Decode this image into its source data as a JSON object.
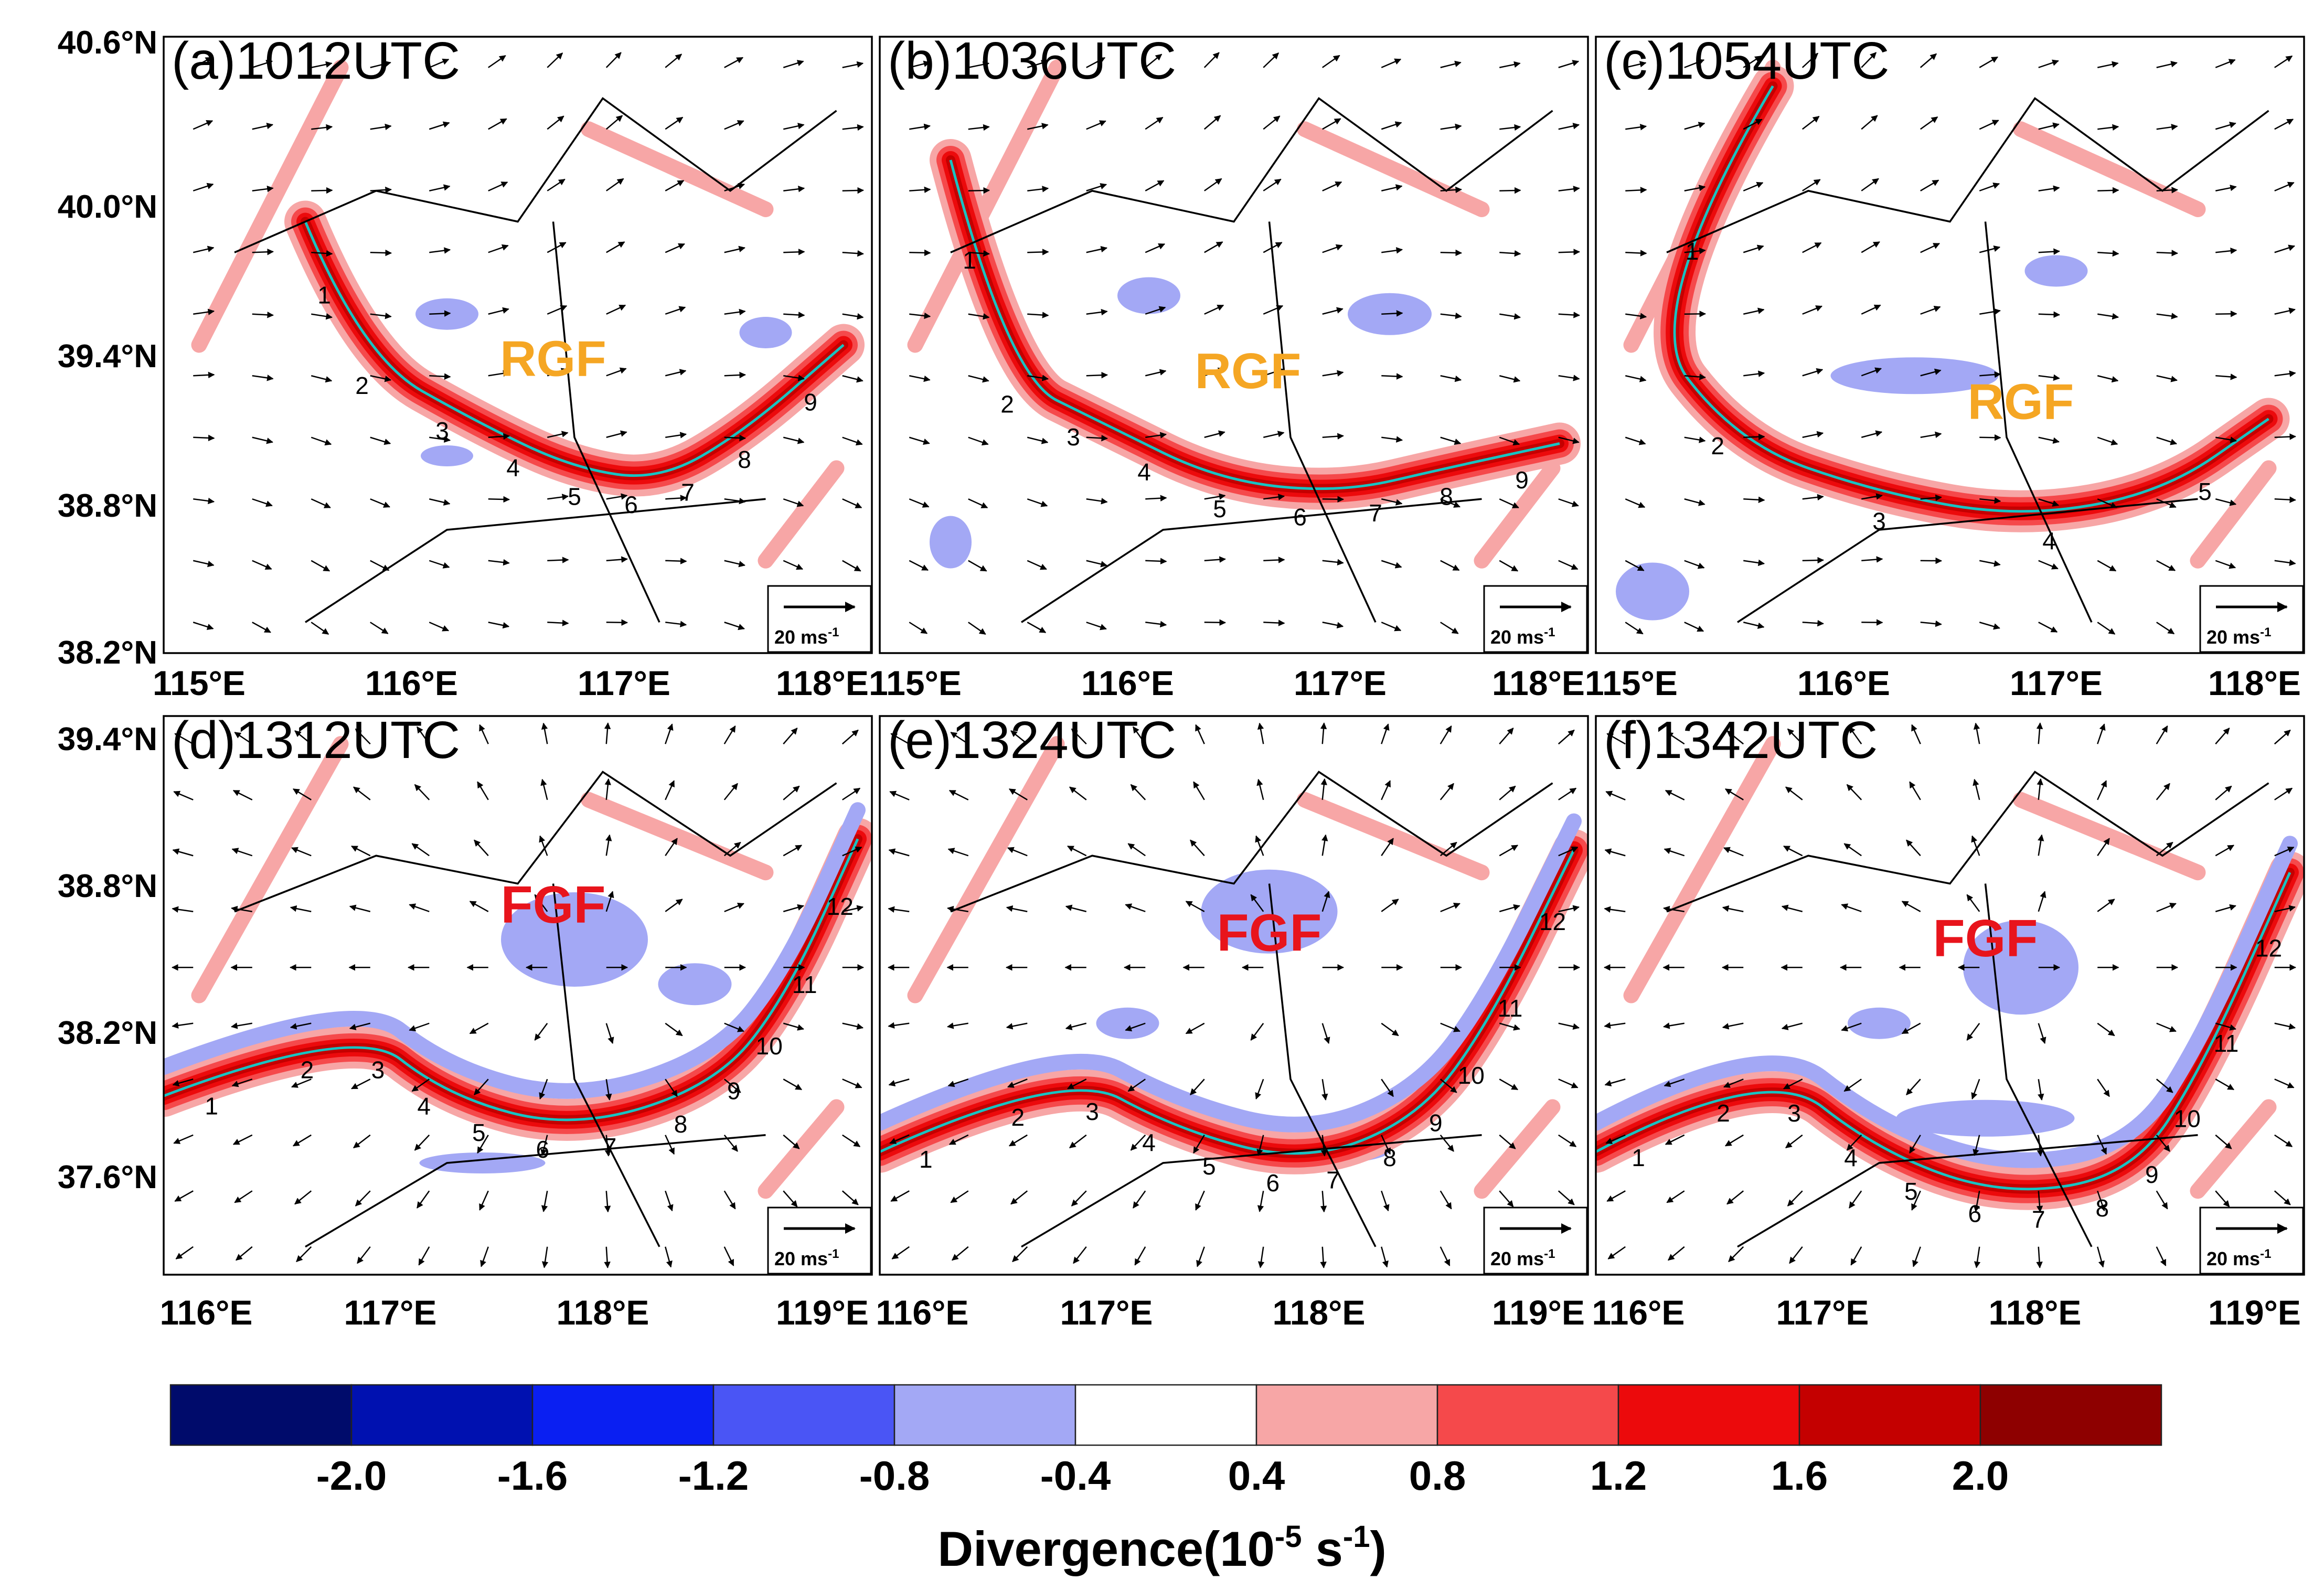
{
  "figure": {
    "colorbar": {
      "title_main": "Divergence(10",
      "title_exp1": "-5",
      "title_mid": " s",
      "title_exp2": "-1",
      "title_end": ")",
      "tick_labels": [
        "-2.0",
        "-1.6",
        "-1.2",
        "-0.8",
        "-0.4",
        "0.4",
        "0.8",
        "1.2",
        "1.6",
        "2.0"
      ],
      "colors": [
        "#000b6b",
        "#0011b0",
        "#0a1ff2",
        "#4a55f5",
        "#a3a8f5",
        "#ffffff",
        "#f7a6a6",
        "#f5494b",
        "#ec0a0c",
        "#c40000",
        "#8e0000"
      ]
    },
    "reference_vector": {
      "label": "20 ms",
      "exponent": "-1"
    },
    "row1": {
      "lat_labels": [
        "40.6°N",
        "40.0°N",
        "39.4°N",
        "38.8°N",
        "38.2°N"
      ],
      "lon_labels": [
        "115°E",
        "116°E",
        "117°E",
        "118°E"
      ]
    },
    "row2": {
      "lat_labels": [
        "39.4°N",
        "38.8°N",
        "38.2°N",
        "37.6°N"
      ],
      "lon_labels": [
        "116°E",
        "117°E",
        "118°E",
        "119°E"
      ]
    },
    "panels": [
      {
        "title": "(a)1012UTC",
        "front_label": "RGF",
        "points": [
          "1",
          "2",
          "3",
          "4",
          "5",
          "6",
          "7",
          "8",
          "9"
        ]
      },
      {
        "title": "(b)1036UTC",
        "front_label": "RGF",
        "points": [
          "1",
          "2",
          "3",
          "4",
          "5",
          "6",
          "7",
          "8",
          "9"
        ]
      },
      {
        "title": "(c)1054UTC",
        "front_label": "RGF",
        "points": [
          "1",
          "2",
          "3",
          "4",
          "5"
        ]
      },
      {
        "title": "(d)1312UTC",
        "front_label": "FGF",
        "points": [
          "1",
          "2",
          "3",
          "4",
          "5",
          "6",
          "7",
          "8",
          "9",
          "10",
          "11",
          "12"
        ]
      },
      {
        "title": "(e)1324UTC",
        "front_label": "FGF",
        "points": [
          "1",
          "2",
          "3",
          "4",
          "5",
          "6",
          "7",
          "8",
          "9",
          "10",
          "11",
          "12"
        ]
      },
      {
        "title": "(f)1342UTC",
        "front_label": "FGF",
        "points": [
          "1",
          "2",
          "3",
          "4",
          "5",
          "6",
          "7",
          "8",
          "9",
          "10",
          "11",
          "12"
        ]
      }
    ]
  }
}
